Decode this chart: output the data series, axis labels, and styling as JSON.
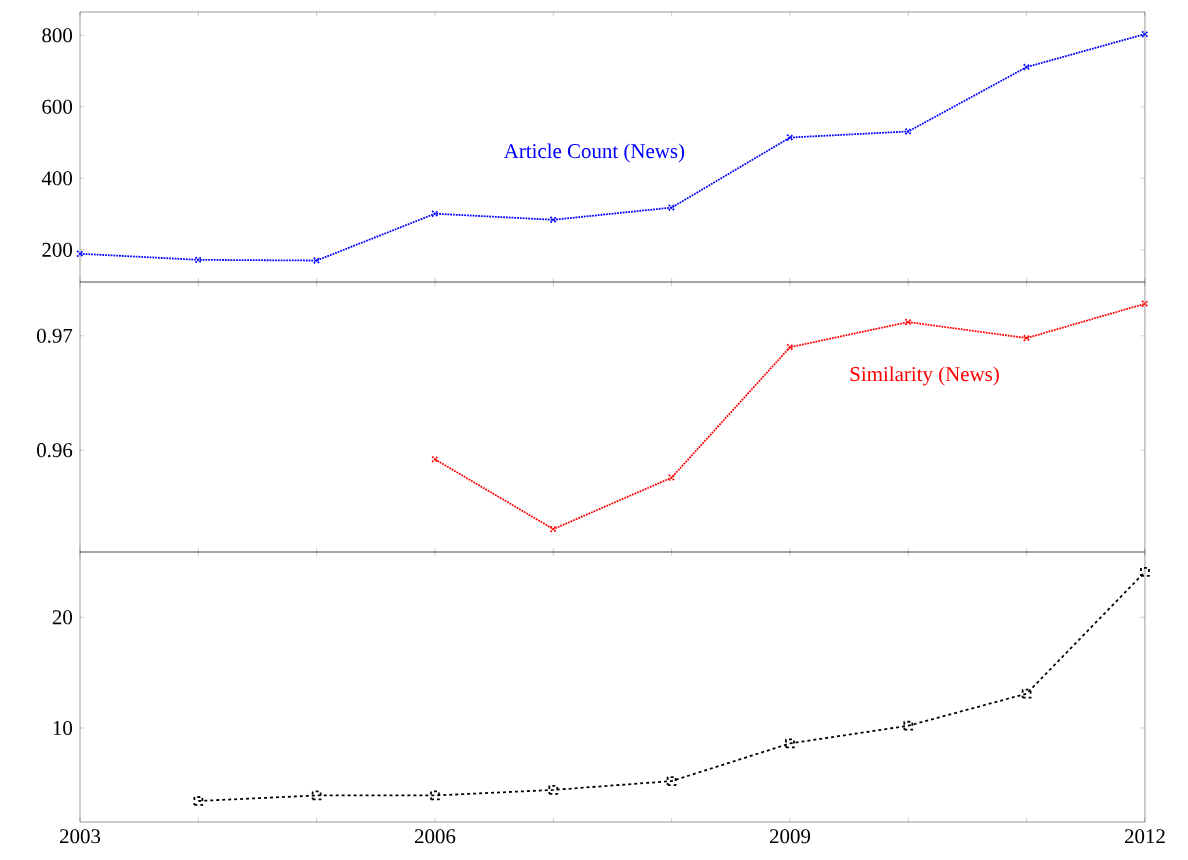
{
  "chart_data": [
    {
      "type": "line",
      "x": [
        2003,
        2004,
        2005,
        2006,
        2007,
        2008,
        2009,
        2010,
        2011,
        2012
      ],
      "xlim": [
        2003,
        2012
      ],
      "xticks": [
        2003,
        {
          "value": 2004,
          "label": null
        },
        {
          "value": 2005,
          "label": null
        },
        2006,
        {
          "value": 2007,
          "label": null
        },
        {
          "value": 2008,
          "label": null
        },
        2009,
        {
          "value": 2010,
          "label": null
        },
        {
          "value": 2011,
          "label": null
        },
        2012
      ],
      "ylim": [
        110,
        865
      ],
      "yticks": [
        200,
        400,
        600,
        800
      ],
      "tick_labels": "y",
      "marker": "cross",
      "line_style": "dotted",
      "series": [
        {
          "name": "Article Count (News)",
          "color": "#0000ff",
          "values": [
            189,
            172,
            170,
            301,
            284,
            318,
            514,
            531,
            711,
            803
          ]
        }
      ]
    },
    {
      "type": "line",
      "x": [
        2006,
        2007,
        2008,
        2009,
        2010,
        2011,
        2012
      ],
      "xlim": [
        2003,
        2012
      ],
      "xticks": [
        2003,
        {
          "value": 2004,
          "label": null
        },
        {
          "value": 2005,
          "label": null
        },
        2006,
        {
          "value": 2007,
          "label": null
        },
        {
          "value": 2008,
          "label": null
        },
        2009,
        {
          "value": 2010,
          "label": null
        },
        {
          "value": 2011,
          "label": null
        },
        2012
      ],
      "ylim": [
        0.9511,
        0.9747
      ],
      "yticks": [
        0.96,
        0.97
      ],
      "tick_labels": "y",
      "marker": "cross",
      "line_style": "dotted",
      "series": [
        {
          "name": "Similarity (News)",
          "color": "#ff0000",
          "values": [
            0.9592,
            0.9531,
            0.9576,
            0.969,
            0.9712,
            0.9698,
            0.9728
          ]
        }
      ]
    },
    {
      "type": "line",
      "x": [
        2004,
        2005,
        2006,
        2007,
        2008,
        2009,
        2010,
        2011,
        2012
      ],
      "xlim": [
        2003,
        2012
      ],
      "xticks": [
        2003,
        {
          "value": 2004,
          "label": null
        },
        {
          "value": 2005,
          "label": null
        },
        2006,
        {
          "value": 2007,
          "label": null
        },
        {
          "value": 2008,
          "label": null
        },
        2009,
        {
          "value": 2010,
          "label": null
        },
        {
          "value": 2011,
          "label": null
        },
        2012
      ],
      "ylim": [
        1.5,
        25.9
      ],
      "yticks": [
        10,
        20
      ],
      "marker": "square",
      "line_style": "dashed",
      "series": [
        {
          "color": "#000000",
          "values": [
            3.4,
            3.9,
            3.9,
            4.4,
            5.2,
            8.6,
            10.2,
            13.1,
            24.1
          ]
        }
      ]
    }
  ]
}
